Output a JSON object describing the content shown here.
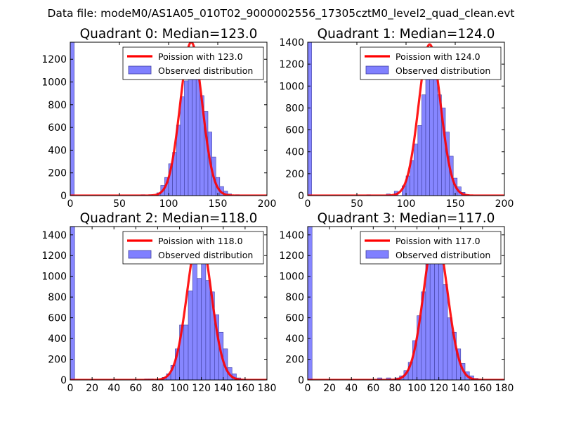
{
  "suptitle": "Data file: modeM0/AS1A05_010T02_9000002556_17305cztM0_level2_quad_clean.evt",
  "colors": {
    "bar_fill": "#8080ff",
    "bar_edge": "#4040a0",
    "fit_line": "#ff0000",
    "axis": "#000000"
  },
  "chart_data": [
    {
      "type": "bar",
      "title": "Quadrant 0: Median=123.0",
      "xlim": [
        0,
        200
      ],
      "ylim": [
        0,
        1350
      ],
      "xticks": [
        0,
        50,
        100,
        150,
        200
      ],
      "yticks": [
        0,
        200,
        400,
        600,
        800,
        1000,
        1200
      ],
      "bin_width": 4,
      "bins": [
        [
          0,
          1350
        ],
        [
          72,
          8
        ],
        [
          80,
          8
        ],
        [
          88,
          25
        ],
        [
          92,
          90
        ],
        [
          96,
          160
        ],
        [
          100,
          280
        ],
        [
          104,
          380
        ],
        [
          108,
          620
        ],
        [
          112,
          870
        ],
        [
          116,
          1010
        ],
        [
          120,
          1230
        ],
        [
          124,
          1260
        ],
        [
          128,
          1150
        ],
        [
          132,
          880
        ],
        [
          136,
          740
        ],
        [
          140,
          560
        ],
        [
          144,
          340
        ],
        [
          148,
          160
        ],
        [
          152,
          80
        ],
        [
          156,
          40
        ],
        [
          160,
          15
        ],
        [
          168,
          8
        ]
      ],
      "fit_label": "Poission with 123.0",
      "obs_label": "Observed distribution",
      "fit_mu": 123,
      "fit_peak": 1350
    },
    {
      "type": "bar",
      "title": "Quadrant 1: Median=124.0",
      "xlim": [
        0,
        200
      ],
      "ylim": [
        0,
        1400
      ],
      "xticks": [
        0,
        50,
        100,
        150,
        200
      ],
      "yticks": [
        0,
        200,
        400,
        600,
        800,
        1000,
        1200,
        1400
      ],
      "bin_width": 4,
      "bins": [
        [
          0,
          1400
        ],
        [
          60,
          8
        ],
        [
          80,
          15
        ],
        [
          88,
          40
        ],
        [
          96,
          90
        ],
        [
          100,
          180
        ],
        [
          104,
          320
        ],
        [
          108,
          470
        ],
        [
          112,
          640
        ],
        [
          116,
          920
        ],
        [
          120,
          1100
        ],
        [
          124,
          1200
        ],
        [
          128,
          1150
        ],
        [
          132,
          920
        ],
        [
          136,
          800
        ],
        [
          140,
          580
        ],
        [
          144,
          360
        ],
        [
          148,
          160
        ],
        [
          152,
          80
        ],
        [
          156,
          30
        ],
        [
          160,
          10
        ]
      ],
      "fit_label": "Poission with 124.0",
      "obs_label": "Observed distribution",
      "fit_mu": 124,
      "fit_peak": 1380
    },
    {
      "type": "bar",
      "title": "Quadrant 2: Median=118.0",
      "xlim": [
        0,
        180
      ],
      "ylim": [
        0,
        1480
      ],
      "xticks": [
        0,
        20,
        40,
        60,
        80,
        100,
        120,
        140,
        160,
        180
      ],
      "yticks": [
        0,
        200,
        400,
        600,
        800,
        1000,
        1200,
        1400
      ],
      "bin_width": 4,
      "bins": [
        [
          0,
          1480
        ],
        [
          68,
          10
        ],
        [
          72,
          10
        ],
        [
          84,
          25
        ],
        [
          88,
          60
        ],
        [
          92,
          140
        ],
        [
          96,
          300
        ],
        [
          100,
          530
        ],
        [
          104,
          530
        ],
        [
          108,
          860
        ],
        [
          112,
          1240
        ],
        [
          116,
          980
        ],
        [
          120,
          1200
        ],
        [
          124,
          960
        ],
        [
          128,
          850
        ],
        [
          132,
          630
        ],
        [
          136,
          460
        ],
        [
          140,
          300
        ],
        [
          144,
          120
        ],
        [
          148,
          60
        ],
        [
          152,
          20
        ],
        [
          156,
          8
        ]
      ],
      "fit_label": "Poission with 118.0",
      "obs_label": "Observed distribution",
      "fit_mu": 118,
      "fit_peak": 1420
    },
    {
      "type": "bar",
      "title": "Quadrant 3: Median=117.0",
      "xlim": [
        0,
        180
      ],
      "ylim": [
        0,
        1480
      ],
      "xticks": [
        0,
        20,
        40,
        60,
        80,
        100,
        120,
        140,
        160,
        180
      ],
      "yticks": [
        0,
        200,
        400,
        600,
        800,
        1000,
        1200,
        1400
      ],
      "bin_width": 4,
      "bins": [
        [
          0,
          1480
        ],
        [
          64,
          20
        ],
        [
          72,
          20
        ],
        [
          80,
          20
        ],
        [
          84,
          40
        ],
        [
          88,
          90
        ],
        [
          92,
          170
        ],
        [
          96,
          380
        ],
        [
          100,
          620
        ],
        [
          104,
          850
        ],
        [
          108,
          1150
        ],
        [
          112,
          1220
        ],
        [
          116,
          1350
        ],
        [
          120,
          1120
        ],
        [
          124,
          920
        ],
        [
          128,
          600
        ],
        [
          132,
          460
        ],
        [
          136,
          300
        ],
        [
          140,
          160
        ],
        [
          144,
          80
        ],
        [
          148,
          40
        ],
        [
          152,
          15
        ]
      ],
      "fit_label": "Poission with 117.0",
      "obs_label": "Observed distribution",
      "fit_mu": 117,
      "fit_peak": 1420
    }
  ]
}
